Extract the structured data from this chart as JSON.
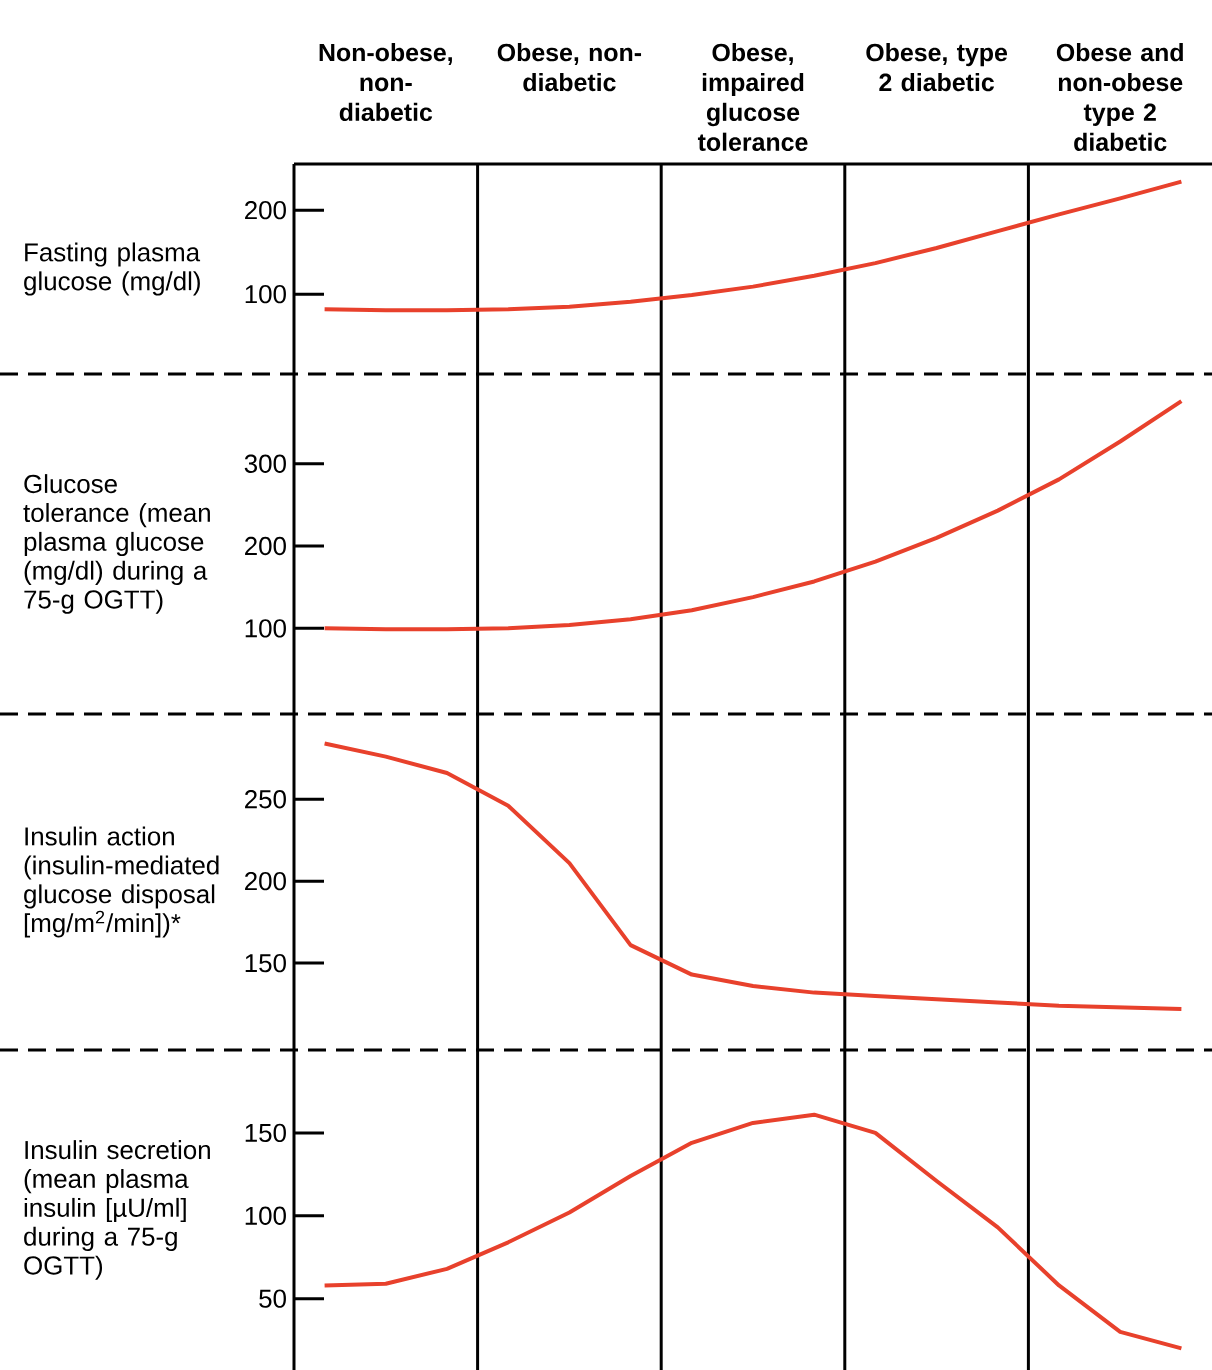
{
  "chart_data": [
    {
      "type": "line",
      "ylabel": "Fasting plasma glucose (mg/dl)",
      "color": "#e8412c",
      "categories": [
        null,
        "Non-obese, non-diabetic",
        null,
        null,
        "Obese, non-diabetic",
        null,
        null,
        "Obese, impaired glucose tolerance",
        null,
        null,
        "Obese, type 2 diabetic",
        null,
        null,
        "Obese and non-obese type 2 diabetic",
        null
      ],
      "values": [
        82,
        81,
        81,
        82,
        85,
        91,
        99,
        109,
        122,
        137,
        155,
        175,
        195,
        214,
        234
      ],
      "ylim": [
        5,
        255
      ],
      "yticks": [
        100,
        200
      ]
    },
    {
      "type": "line",
      "ylabel": "Glucose tolerance (mean plasma glucose (mg/dl) during a 75-g OGTT)",
      "color": "#e8412c",
      "categories": [
        null,
        null,
        null,
        null,
        null,
        null,
        null,
        null,
        null,
        null,
        null,
        null,
        null,
        null,
        null
      ],
      "values": [
        100,
        99,
        99,
        100,
        104,
        111,
        122,
        138,
        157,
        181,
        210,
        243,
        281,
        327,
        376
      ],
      "ylim": [
        -4,
        409
      ],
      "yticks": [
        100,
        200,
        300
      ],
      "tick_labels": "y"
    },
    {
      "type": "line",
      "ylabel": "Insulin action (insulin-mediated glucose disposal [mg/m$^{2}$/min])*",
      "color": "#e8412c",
      "categories": [
        null,
        null,
        null,
        null,
        null,
        null,
        null,
        null,
        null,
        null,
        null,
        null,
        null,
        null,
        null
      ],
      "values": [
        284,
        276,
        266,
        246,
        211,
        161,
        143,
        136,
        132,
        130,
        128,
        126,
        124,
        123,
        122
      ],
      "ylim": [
        97,
        302
      ],
      "yticks": [
        150,
        200,
        250
      ],
      "tick_labels": "y"
    },
    {
      "type": "line",
      "ylabel": "Insulin secretion (mean plasma insulin [µU/ml] during a 75-g OGTT)",
      "color": "#e8412c",
      "categories": [
        null,
        null,
        null,
        null,
        null,
        null,
        null,
        null,
        null,
        null,
        null,
        null,
        null,
        null,
        null
      ],
      "values": [
        58,
        59,
        68,
        84,
        102,
        124,
        144,
        156,
        161,
        150,
        121,
        93,
        58,
        30,
        20
      ],
      "ylim": [
        7,
        200
      ],
      "yticks": [
        50,
        100,
        150
      ],
      "tick_labels": "y"
    }
  ]
}
